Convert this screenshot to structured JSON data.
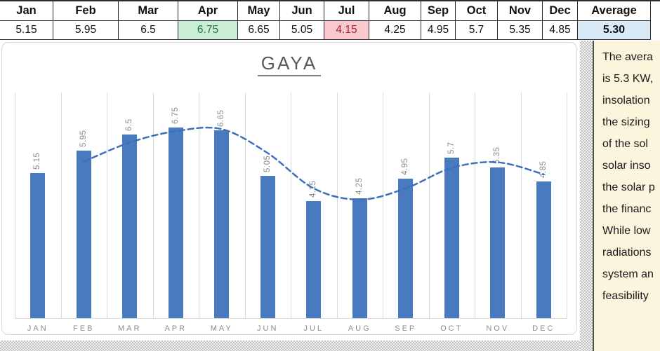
{
  "table": {
    "columns": [
      {
        "header": "Jan",
        "value": "5.15",
        "style": "normal"
      },
      {
        "header": "Feb",
        "value": "5.95",
        "style": "normal"
      },
      {
        "header": "Mar",
        "value": "6.5",
        "style": "normal"
      },
      {
        "header": "Apr",
        "value": "6.75",
        "style": "good"
      },
      {
        "header": "May",
        "value": "6.65",
        "style": "normal"
      },
      {
        "header": "Jun",
        "value": "5.05",
        "style": "normal"
      },
      {
        "header": "Jul",
        "value": "4.15",
        "style": "bad"
      },
      {
        "header": "Aug",
        "value": "4.25",
        "style": "normal"
      },
      {
        "header": "Sep",
        "value": "4.95",
        "style": "normal"
      },
      {
        "header": "Oct",
        "value": "5.7",
        "style": "normal"
      },
      {
        "header": "Nov",
        "value": "5.35",
        "style": "normal"
      },
      {
        "header": "Dec",
        "value": "4.85",
        "style": "normal"
      },
      {
        "header": "Average",
        "value": "5.30",
        "style": "average"
      }
    ]
  },
  "chart_data": {
    "type": "bar",
    "title": "GAYA",
    "categories": [
      "JAN",
      "FEB",
      "MAR",
      "APR",
      "MAY",
      "JUN",
      "JUL",
      "AUG",
      "SEP",
      "OCT",
      "NOV",
      "DEC"
    ],
    "values": [
      5.15,
      5.95,
      6.5,
      6.75,
      6.65,
      5.05,
      4.15,
      4.25,
      4.95,
      5.7,
      5.35,
      4.85
    ],
    "data_labels": [
      "5.15",
      "5.95",
      "6.5",
      "6.75",
      "6.65",
      "5.05",
      "4.15",
      "4.25",
      "4.95",
      "5.7",
      "5.35",
      "4.85"
    ],
    "ylim": [
      0,
      8
    ],
    "grid": "vertical-only",
    "legend": "none",
    "trendline": {
      "type": "moving_average",
      "period": 2,
      "line_style": "dashed",
      "smooth": true
    }
  },
  "side_panel": {
    "lines": [
      "The avera",
      "is 5.3 KW,",
      "insolation",
      "the sizing",
      "of the sol",
      "solar inso",
      "the solar p",
      "the financ",
      "While low",
      "radiations",
      "system an",
      "feasibility"
    ]
  },
  "colors": {
    "bar": "#4979BE",
    "trendline": "#3E6FBE",
    "good_bg": "#C9EED3",
    "good_text": "#1F7246",
    "bad_bg": "#F8C8CD",
    "bad_text": "#A6232B",
    "average_bg": "#D9E9F5",
    "panel_bg": "#FCF4DC",
    "chart_text": "#8A8A8A",
    "title_text": "#595959"
  }
}
